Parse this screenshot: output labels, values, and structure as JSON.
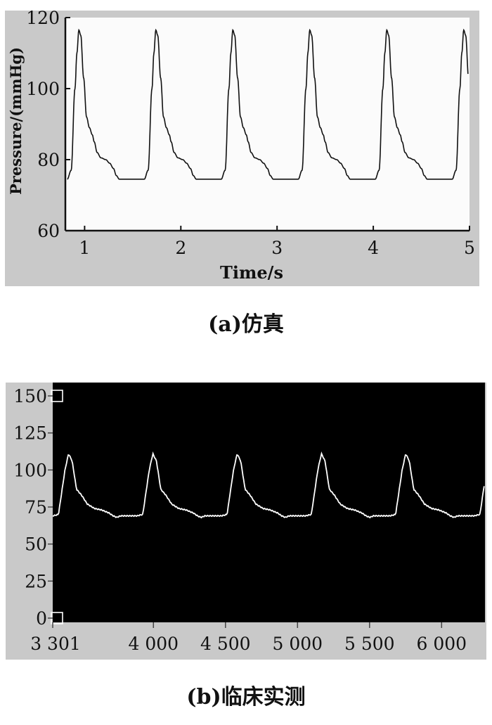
{
  "captions": {
    "a": "(a)仿真",
    "b": "(b)临床实测"
  },
  "colors": {
    "frame_gray": "#c9c9c9",
    "plot_bg_a": "#fbfbfb",
    "plot_bg_b": "#000000",
    "trace_a": "#111111",
    "trace_b": "#ffffff"
  },
  "chart_data": [
    {
      "type": "line",
      "ylabel": "Pressure/(mmHg)",
      "xlabel": "Time/s",
      "xlim": [
        0.8,
        5.0
      ],
      "ylim": [
        60,
        120
      ],
      "xticks": [
        "1",
        "2",
        "3",
        "4",
        "5"
      ],
      "yticks": [
        "60",
        "80",
        "100",
        "120"
      ],
      "grid": false,
      "series": [
        {
          "beat_period_s": 0.8,
          "systolic_peak_mmHg": 117,
          "diastolic_min_mmHg": 74.5,
          "cycle_points": [
            [
              0.0,
              74.5
            ],
            [
              0.04,
              77
            ],
            [
              0.08,
              100
            ],
            [
              0.1,
              110
            ],
            [
              0.12,
              116.5
            ],
            [
              0.14,
              115
            ],
            [
              0.17,
              103
            ],
            [
              0.2,
              92
            ],
            [
              0.23,
              89
            ],
            [
              0.26,
              87
            ],
            [
              0.28,
              85
            ],
            [
              0.31,
              82
            ],
            [
              0.35,
              80.5
            ],
            [
              0.4,
              80
            ],
            [
              0.44,
              79
            ],
            [
              0.48,
              77.5
            ],
            [
              0.51,
              75.5
            ],
            [
              0.54,
              74.5
            ],
            [
              0.6,
              74.5
            ]
          ],
          "x": [
            0.82,
            1.0,
            1.8,
            2.6,
            3.4,
            4.2,
            4.98
          ],
          "y": [
            74.5,
            117,
            117,
            117,
            117,
            117,
            117
          ]
        }
      ]
    },
    {
      "type": "line",
      "xlim": [
        3301,
        6301
      ],
      "ylim": [
        0,
        150
      ],
      "xticks": [
        "3 301",
        "4 000",
        "4 500",
        "5 000",
        "5 500",
        "6 000"
      ],
      "yticks": [
        "0",
        "25",
        "50",
        "75",
        "100",
        "125",
        "150"
      ],
      "grid": false,
      "series": [
        {
          "beat_period_samples": 585,
          "systolic_peak": 111,
          "diastolic_min": 68,
          "cycle_points": [
            [
              0,
              69
            ],
            [
              40,
              70
            ],
            [
              85,
              100
            ],
            [
              110,
              111
            ],
            [
              135,
              106
            ],
            [
              165,
              87
            ],
            [
              200,
              83
            ],
            [
              240,
              77
            ],
            [
              290,
              74
            ],
            [
              340,
              73
            ],
            [
              390,
              71
            ],
            [
              420,
              69
            ],
            [
              445,
              68
            ],
            [
              470,
              69
            ]
          ],
          "x": [
            3301,
            3410,
            3995,
            4580,
            5165,
            5750
          ],
          "y": [
            69,
            111,
            111,
            111,
            111,
            111
          ]
        }
      ]
    }
  ]
}
